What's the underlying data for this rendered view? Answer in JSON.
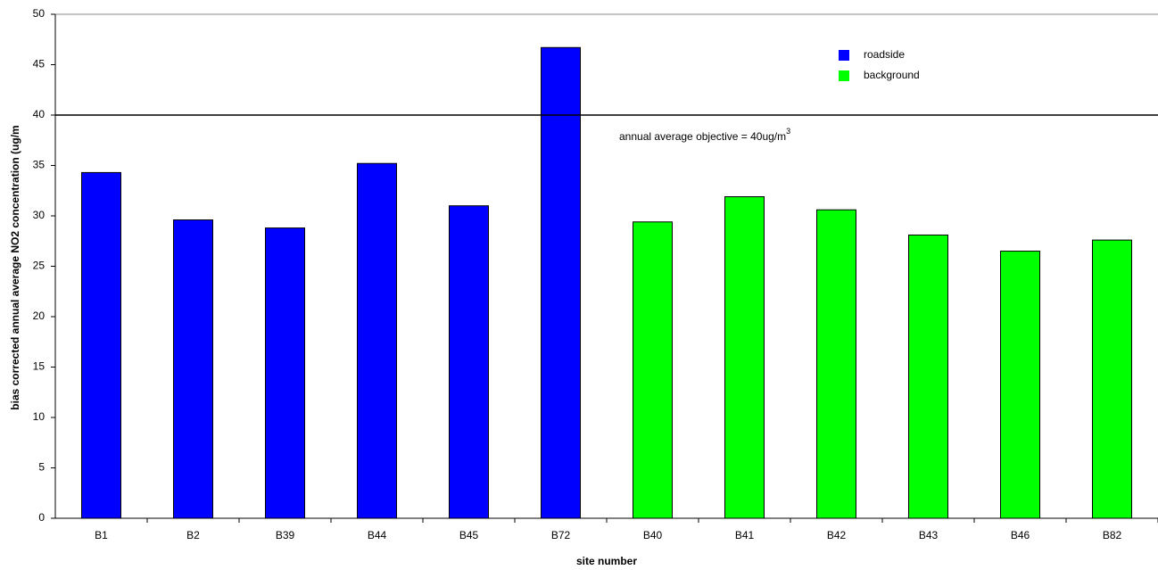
{
  "chart_data": {
    "type": "bar",
    "categories": [
      "B1",
      "B2",
      "B39",
      "B44",
      "B45",
      "B72",
      "B40",
      "B41",
      "B42",
      "B43",
      "B46",
      "B82"
    ],
    "series": [
      {
        "name": "roadside",
        "color": "#0000ff",
        "values": [
          34.3,
          29.6,
          28.8,
          35.2,
          31.0,
          46.7,
          null,
          null,
          null,
          null,
          null,
          null
        ]
      },
      {
        "name": "background",
        "color": "#00ff00",
        "values": [
          null,
          null,
          null,
          null,
          null,
          null,
          29.4,
          31.9,
          30.6,
          28.1,
          26.5,
          27.6
        ]
      }
    ],
    "x_label": "site number",
    "y_label": "bias corrected annual average NO2 concentration (ug/m",
    "ylim": [
      0,
      50
    ],
    "yticks": [
      0,
      5,
      10,
      15,
      20,
      25,
      30,
      35,
      40,
      45,
      50
    ],
    "reference_line": 40,
    "annotation": {
      "text": "annual average objective = 40ug/m",
      "superscript": "3"
    },
    "legend": "top-right",
    "grid": false
  }
}
